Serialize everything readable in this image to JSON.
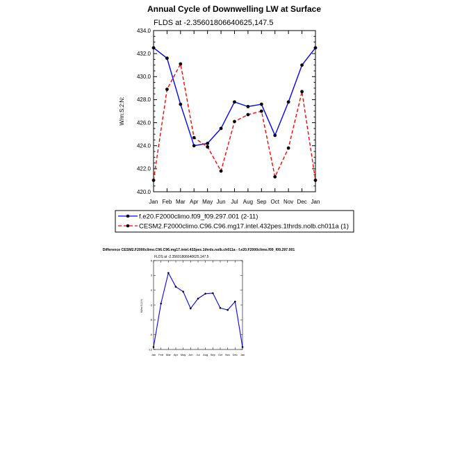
{
  "chart_data": [
    {
      "type": "line",
      "title": "Annual Cycle of Downwelling LW at Surface",
      "subtitle": "FLDS at -2.35601806640625,147.5",
      "xlabel": "",
      "ylabel": "W/m:S:2:N:",
      "categories": [
        "Jan",
        "Feb",
        "Mar",
        "Apr",
        "May",
        "Jun",
        "Jul",
        "Aug",
        "Sep",
        "Oct",
        "Nov",
        "Dec",
        "Jan"
      ],
      "ylim": [
        420,
        434
      ],
      "yticks": [
        420,
        422,
        424,
        426,
        428,
        430,
        432,
        434
      ],
      "ytick_labels": [
        "420.0",
        "422.0",
        "424.0",
        "426.0",
        "428.0",
        "430.0",
        "432.0",
        "434.0"
      ],
      "legend_position": "bottom",
      "series": [
        {
          "name": "f.e20.F2000climo.f09_f09.297.001 (2-11)",
          "color": "#0000ff",
          "dash": "solid",
          "values": [
            432.5,
            431.6,
            427.6,
            424.0,
            424.2,
            425.5,
            427.8,
            427.4,
            427.6,
            424.9,
            427.8,
            431.0,
            432.5
          ]
        },
        {
          "name": "CESM2.F2000climo.C96.C96.mg17.intel.432pes.1thrds.nolb.ch011a (1)",
          "color": "#ff0000",
          "dash": "dashed",
          "values": [
            421.0,
            428.9,
            431.1,
            424.7,
            423.9,
            421.8,
            426.1,
            426.7,
            427.0,
            421.3,
            423.8,
            428.7,
            421.0
          ]
        }
      ]
    },
    {
      "type": "line",
      "title": "Difference CESM2.F2000climo.C96.C96.mg17.intel.432pes.1thrds.nolb.ch011a - f.e20.F2000climo.f09_f09.297.001",
      "subtitle": "FLDS at -2.35601806640625,147.5",
      "xlabel": "",
      "ylabel": "W/m:S:2:N:",
      "categories": [
        "Jan",
        "Feb",
        "Mar",
        "Apr",
        "May",
        "Jun",
        "Jul",
        "Aug",
        "Sep",
        "Oct",
        "Nov",
        "Dec",
        "Jan"
      ],
      "ylim": [
        -12,
        6
      ],
      "yticks": [
        -12,
        -9,
        -6,
        -3,
        0,
        3,
        6
      ],
      "ytick_labels": [
        "-12",
        "-9",
        "-6",
        "-3",
        "0",
        "3",
        "6"
      ],
      "series": [
        {
          "color": "#0000ff",
          "dash": "solid",
          "values": [
            -11.5,
            -2.7,
            3.5,
            0.7,
            -0.3,
            -3.7,
            -1.7,
            -0.7,
            -0.6,
            -3.6,
            -4.0,
            -2.3,
            -11.5
          ]
        }
      ]
    }
  ]
}
